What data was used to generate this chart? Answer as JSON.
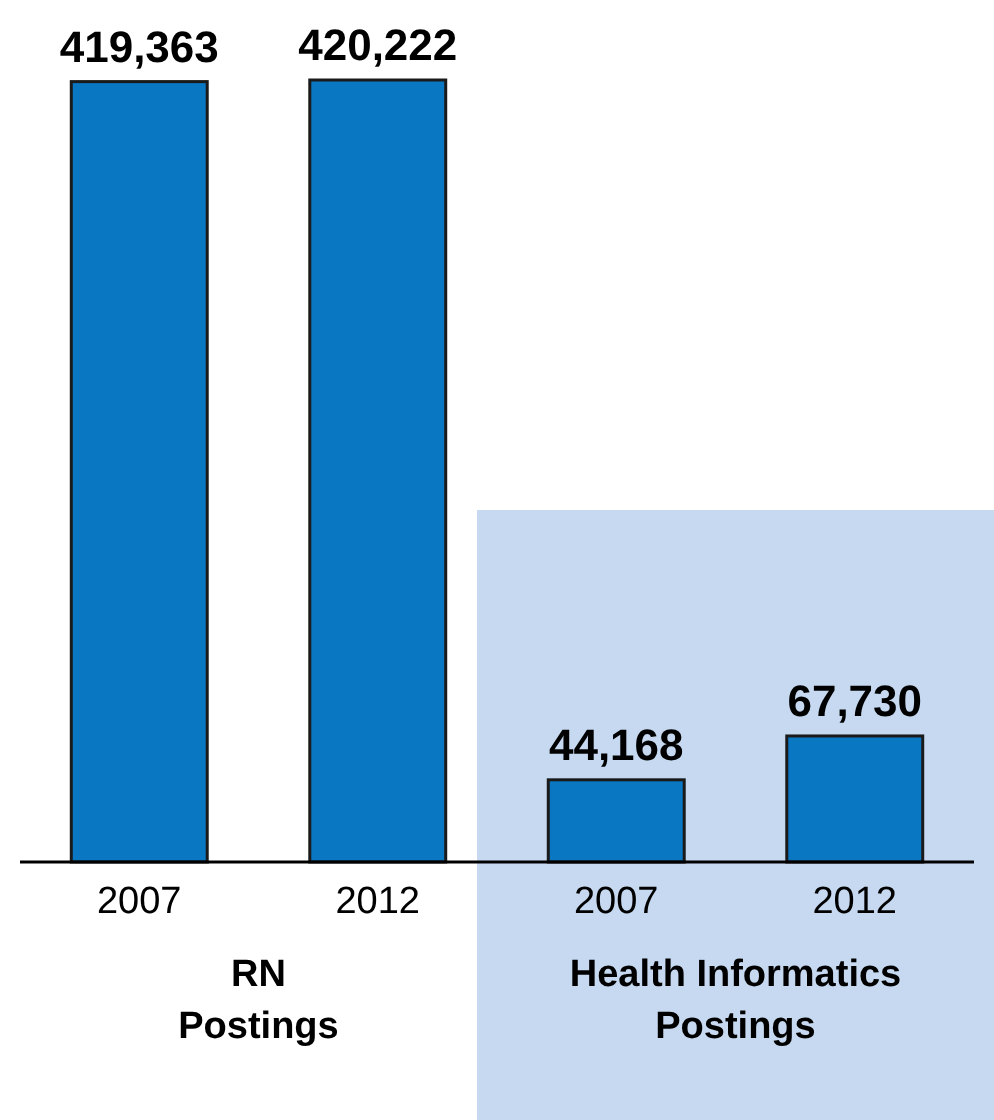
{
  "chart_data": {
    "type": "bar",
    "categories": [
      "2007",
      "2012",
      "2007",
      "2012"
    ],
    "values": [
      419363,
      420222,
      44168,
      67730
    ],
    "color": "#0a77c2",
    "data_labels": true,
    "value_labels": [
      "419,363",
      "420,222",
      "44,168",
      "67,730"
    ],
    "annotations": [
      "RN\nPostings",
      "Health Informatics\nPostings"
    ]
  }
}
